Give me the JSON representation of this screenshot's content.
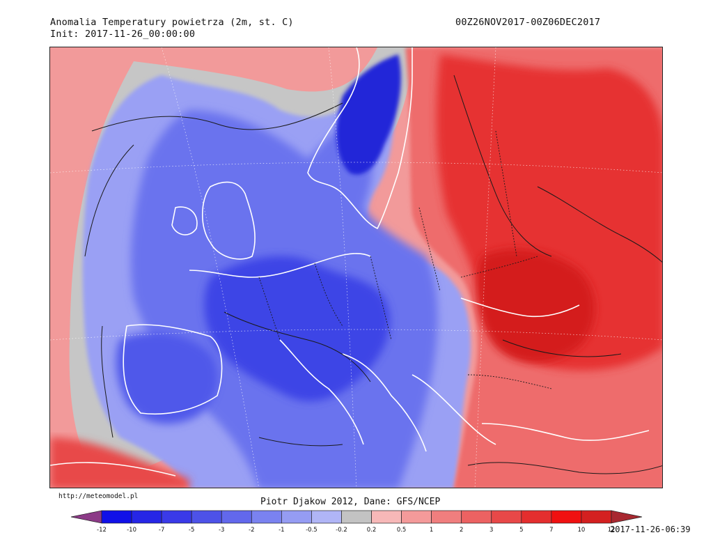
{
  "header": {
    "title": "Anomalia Temperatury powietrza (2m, st. C)",
    "init": "Init: 2017-11-26_00:00:00",
    "period": "00Z26NOV2017-00Z06DEC2017"
  },
  "footer": {
    "source_url": "http://meteomodel.pl",
    "credit": "Piotr Djakow 2012, Dane: GFS/NCEP",
    "timestamp": "2017-11-26-06:39"
  },
  "colorbar": {
    "labels": [
      "-12",
      "-10",
      "-7",
      "-5",
      "-3",
      "-2",
      "-1",
      "-0.5",
      "-0.2",
      "0.2",
      "0.5",
      "1",
      "2",
      "3",
      "5",
      "7",
      "10",
      "12"
    ],
    "colors": [
      "#8c3a87",
      "#1010e8",
      "#2626e6",
      "#3a3ae8",
      "#4d52e8",
      "#6268ec",
      "#7a82f0",
      "#959cf3",
      "#b0b5f6",
      "#c3c3c3",
      "#f7b8b8",
      "#f49a9a",
      "#f07e7e",
      "#ec6262",
      "#e84848",
      "#e42e2e",
      "#f01010",
      "#d42020",
      "#a82830"
    ]
  },
  "map": {
    "colors": {
      "sea_neutral": "#c6c6c6",
      "warm_light": "#f29a9a",
      "warm_mid": "#ee6c6c",
      "warm_strong": "#e63232",
      "warm_extreme": "#d41c1c",
      "cold_light": "#9aa0f4",
      "cold_mid": "#6b73ee",
      "cold_strong": "#3d45e6",
      "cold_extreme": "#2028d8",
      "coast": "#ffffff",
      "contour": "#1a1a1a"
    }
  }
}
